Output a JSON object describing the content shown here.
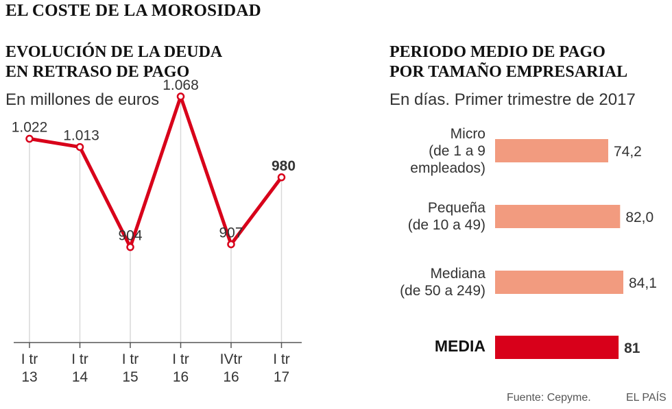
{
  "main_title": "EL COSTE DE LA MOROSIDAD",
  "footer": {
    "source": "Fuente: Cepyme.",
    "brand": "EL PAÍS"
  },
  "colors": {
    "line": "#d8001a",
    "bar": "#f29b7f",
    "bar_total": "#d8001a",
    "grid": "#d9d9d9",
    "axis": "#555555"
  },
  "chart_data": [
    {
      "type": "line",
      "title_lines": [
        "EVOLUCIÓN DE LA DEUDA",
        "EN RETRASO DE PAGO"
      ],
      "subtitle": "En millones de euros",
      "categories": [
        [
          "I tr",
          "13"
        ],
        [
          "I tr",
          "14"
        ],
        [
          "I tr",
          "15"
        ],
        [
          "I tr",
          "16"
        ],
        [
          "IVtr",
          "16"
        ],
        [
          "I tr",
          "17"
        ]
      ],
      "values": [
        1022,
        1013,
        904,
        1068,
        907,
        980
      ],
      "value_labels": [
        "1.022",
        "1.013",
        "904",
        "1.068",
        "907",
        "980"
      ],
      "highlight_last": true,
      "ylim": [
        0,
        1150
      ],
      "grid": "vertical"
    },
    {
      "type": "bar",
      "orientation": "horizontal",
      "title_lines": [
        "PERIODO MEDIO DE PAGO",
        "POR TAMAÑO EMPRESARIAL"
      ],
      "subtitle": "En días. Primer trimestre de 2017",
      "categories": [
        {
          "name": "Micro",
          "detail": [
            "(de 1 a 9",
            "empleados)"
          ]
        },
        {
          "name": "Pequeña",
          "detail": [
            "(de 10 a 49)"
          ]
        },
        {
          "name": "Mediana",
          "detail": [
            "(de 50 a 249)"
          ]
        },
        {
          "name": "MEDIA",
          "detail": [],
          "total": true
        }
      ],
      "values": [
        74.2,
        82.0,
        84.1,
        81
      ],
      "value_labels": [
        "74,2",
        "82,0",
        "84,1",
        "81"
      ],
      "xlim": [
        0,
        84.1
      ]
    }
  ]
}
